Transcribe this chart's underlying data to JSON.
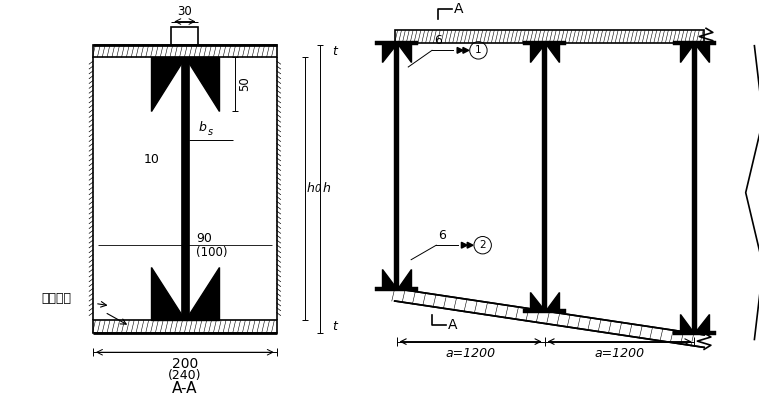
{
  "bg_color": "#ffffff",
  "line_color": "#000000",
  "fig_width": 7.72,
  "fig_height": 4.0,
  "dpi": 100,
  "left_title": "A-A",
  "dim_30": "30",
  "dim_50": "50",
  "dim_bs": "b",
  "dim_bs_sub": "s",
  "dim_10": "10",
  "dim_90": "90",
  "dim_100": "(100)",
  "dim_200": "200",
  "dim_240": "(240)",
  "dim_h0": "h",
  "dim_h0_sub": "0",
  "dim_h": "h",
  "dim_t_top": "t",
  "dim_t_bot": "t",
  "label_paoping": "刈平抑紧",
  "label_6_1": "6",
  "label_6_2": "6",
  "label_num_1": "1",
  "label_num_2": "2",
  "dim_a1200_1": "a=1200",
  "dim_a1200_2": "a=1200",
  "section_A": "A"
}
